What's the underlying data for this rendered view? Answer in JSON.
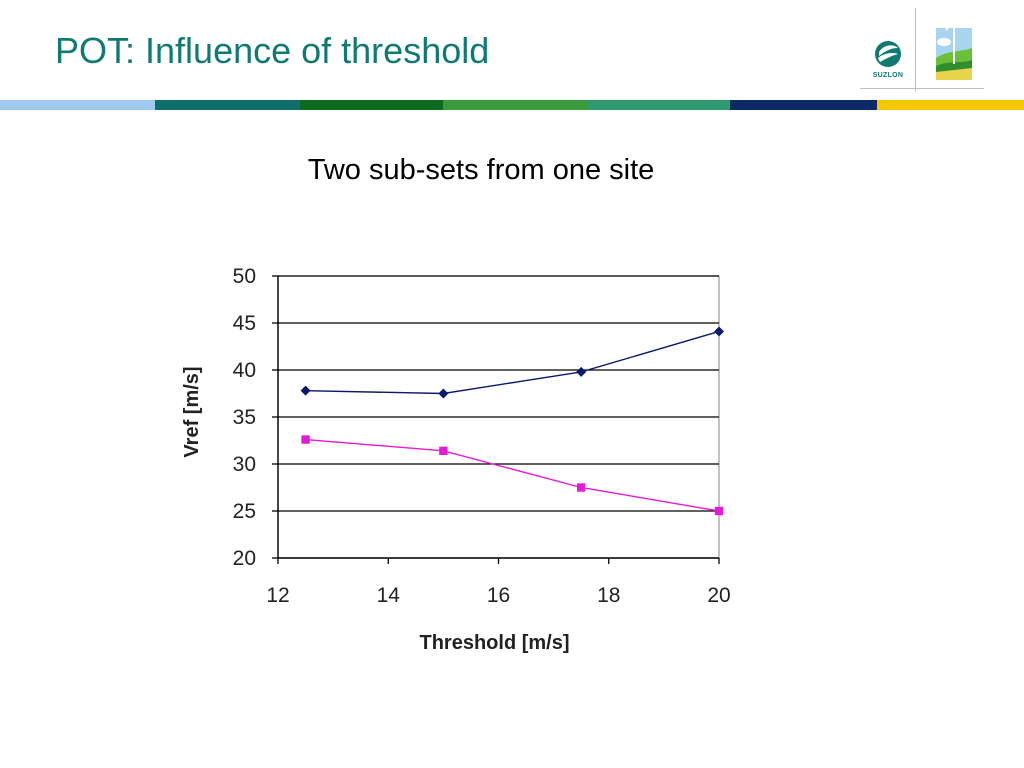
{
  "slide": {
    "title": "POT: Influence of threshold",
    "subtitle": "Two sub-sets from one site"
  },
  "logo": {
    "text": "SUZLON",
    "icons": [
      "suzlon-emblem-icon",
      "wind-turbine-icon"
    ]
  },
  "stripe_colors": [
    "#9fc9ef",
    "#0f6d6c",
    "#0c6b1e",
    "#3a9b3c",
    "#2f9a72",
    "#0b2a66",
    "#f5c800"
  ],
  "chart_data": {
    "type": "line",
    "xlabel": "Threshold [m/s]",
    "ylabel": "Vref [m/s]",
    "xlim": [
      12,
      20
    ],
    "ylim": [
      20,
      50
    ],
    "xticks": [
      12,
      14,
      16,
      18,
      20
    ],
    "yticks": [
      20,
      25,
      30,
      35,
      40,
      45,
      50
    ],
    "grid": "horizontal",
    "legend": "none",
    "series": [
      {
        "color": "#0c1a6b",
        "marker": "diamond",
        "x": [
          12.5,
          15,
          17.5,
          20
        ],
        "y": [
          37.8,
          37.5,
          39.8,
          44.1
        ]
      },
      {
        "color": "#e31ad6",
        "marker": "square",
        "x": [
          12.5,
          15,
          17.5,
          20
        ],
        "y": [
          32.6,
          31.4,
          27.5,
          25.0
        ]
      }
    ]
  }
}
